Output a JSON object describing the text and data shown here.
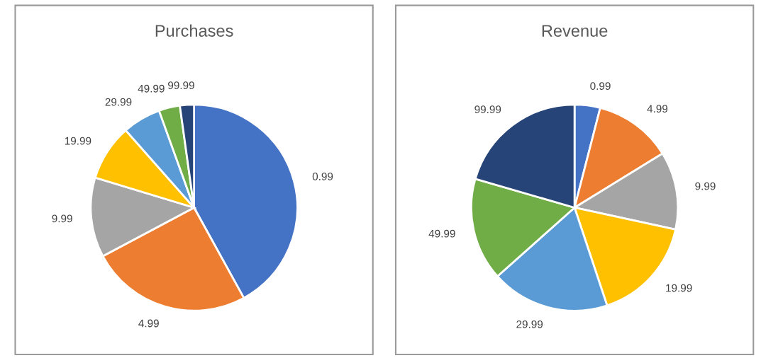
{
  "chart_data": [
    {
      "type": "pie",
      "title": "Purchases",
      "categories": [
        "0.99",
        "4.99",
        "9.99",
        "19.99",
        "29.99",
        "49.99",
        "99.99"
      ],
      "values": [
        42.0,
        25.2,
        12.5,
        8.8,
        6.0,
        3.3,
        2.2
      ],
      "colors": [
        "#4472c4",
        "#ed7d31",
        "#a5a5a5",
        "#ffc000",
        "#5b9bd5",
        "#70ad47",
        "#264478"
      ]
    },
    {
      "type": "pie",
      "title": "Revenue",
      "categories": [
        "0.99",
        "4.99",
        "9.99",
        "19.99",
        "29.99",
        "49.99",
        "99.99"
      ],
      "values": [
        4.0,
        12.2,
        12.2,
        16.5,
        18.5,
        16.1,
        20.5
      ],
      "colors": [
        "#4472c4",
        "#ed7d31",
        "#a5a5a5",
        "#ffc000",
        "#5b9bd5",
        "#70ad47",
        "#264478"
      ]
    }
  ]
}
